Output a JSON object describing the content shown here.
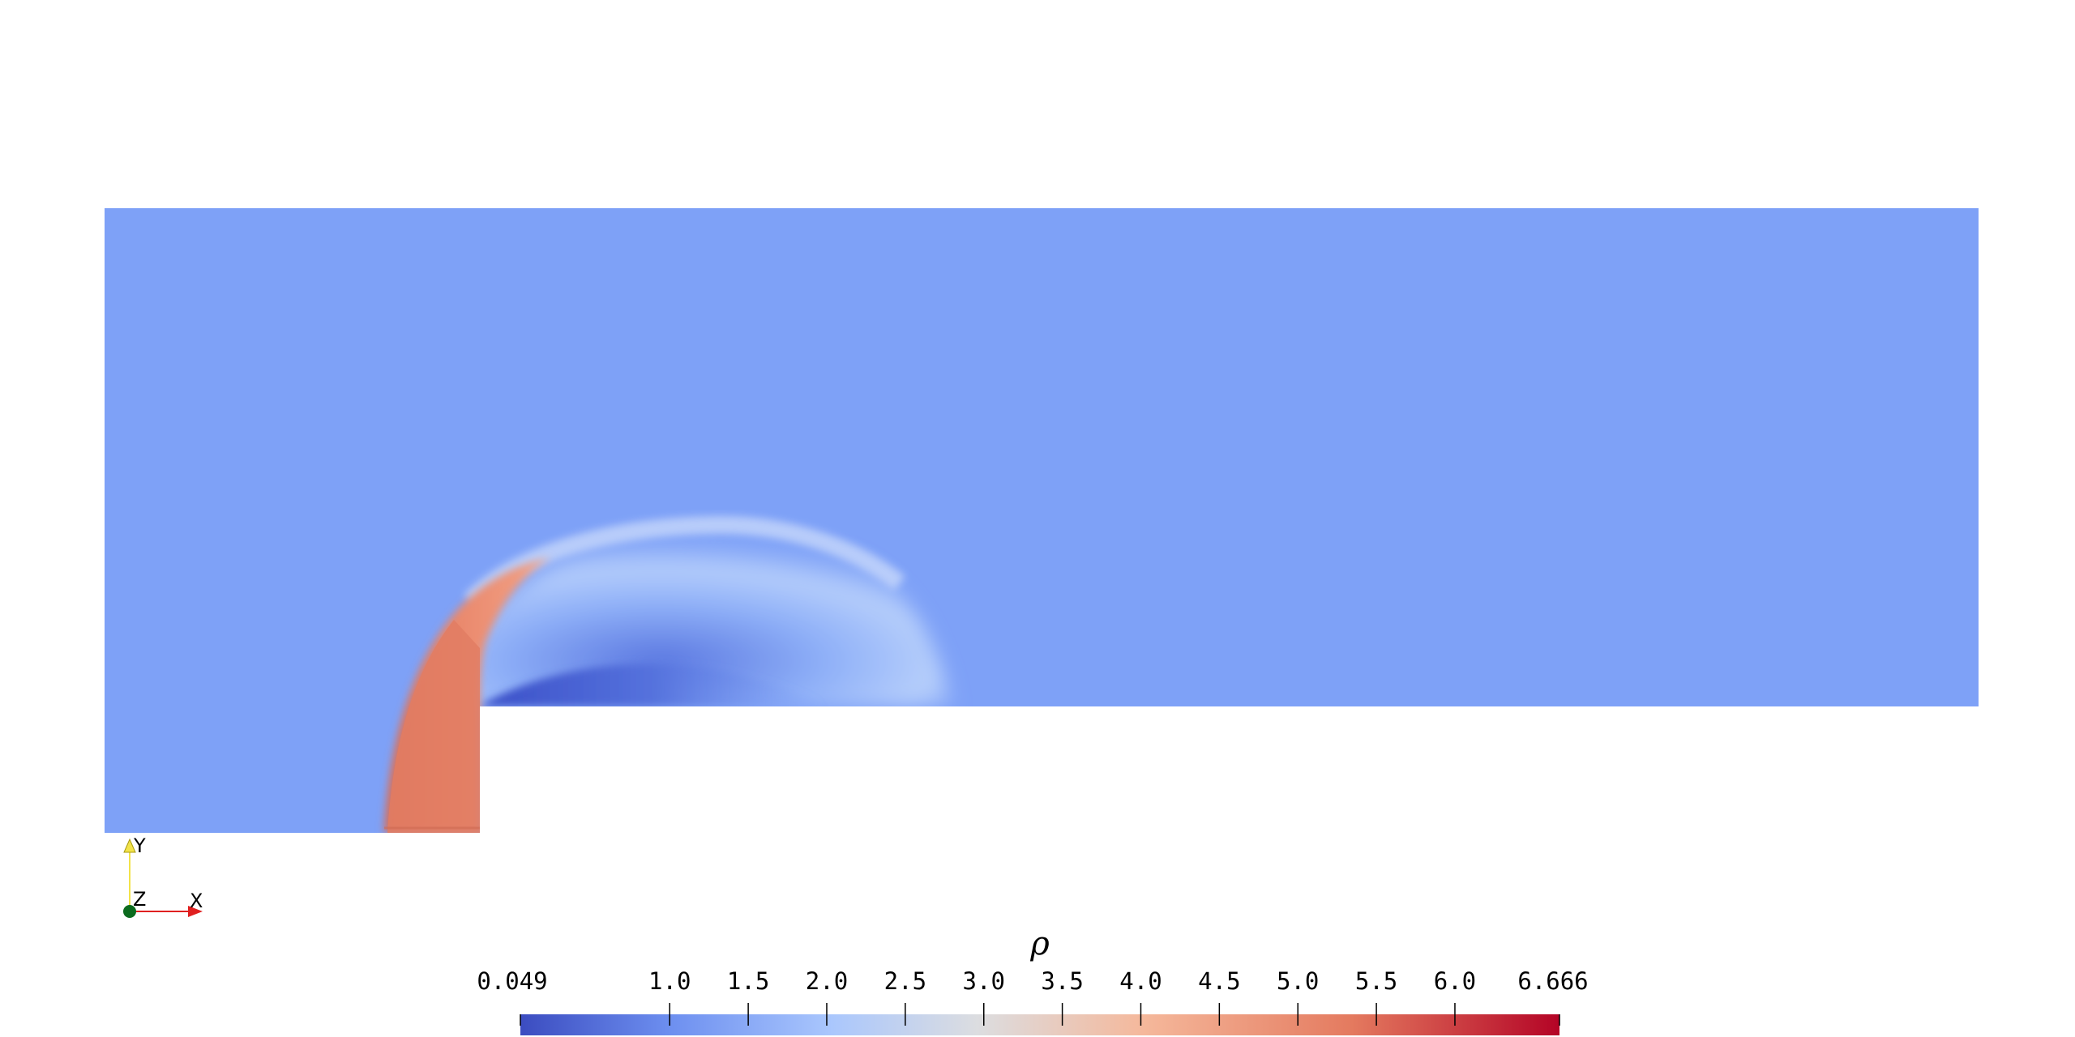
{
  "scalar_field": {
    "name": "ρ",
    "colormap": "Cool to Warm",
    "background_value_color": "#7ea1f7",
    "shock_region_color": "#e88468",
    "low_density_color": "#3d56cc"
  },
  "colorbar": {
    "title": "ρ",
    "min": 0.049,
    "max": 6.666,
    "min_label": "0.049",
    "max_label": "6.666",
    "ticks": [
      {
        "value": 1.0,
        "label": "1.0"
      },
      {
        "value": 1.5,
        "label": "1.5"
      },
      {
        "value": 2.0,
        "label": "2.0"
      },
      {
        "value": 2.5,
        "label": "2.5"
      },
      {
        "value": 3.0,
        "label": "3.0"
      },
      {
        "value": 3.5,
        "label": "3.5"
      },
      {
        "value": 4.0,
        "label": "4.0"
      },
      {
        "value": 4.5,
        "label": "4.5"
      },
      {
        "value": 5.0,
        "label": "5.0"
      },
      {
        "value": 5.5,
        "label": "5.5"
      },
      {
        "value": 6.0,
        "label": "6.0"
      }
    ],
    "stops": [
      "#3b4cc0",
      "#7ea1f7",
      "#b8d0f9",
      "#dddddd",
      "#f5b89b",
      "#e47a5f",
      "#b40426"
    ]
  },
  "orientation_axes": {
    "y_label": "Y",
    "z_label": "Z",
    "x_label": "X",
    "y_color": "#f2e34a",
    "x_color": "#e02020",
    "z_color": "#0c6b1e"
  }
}
